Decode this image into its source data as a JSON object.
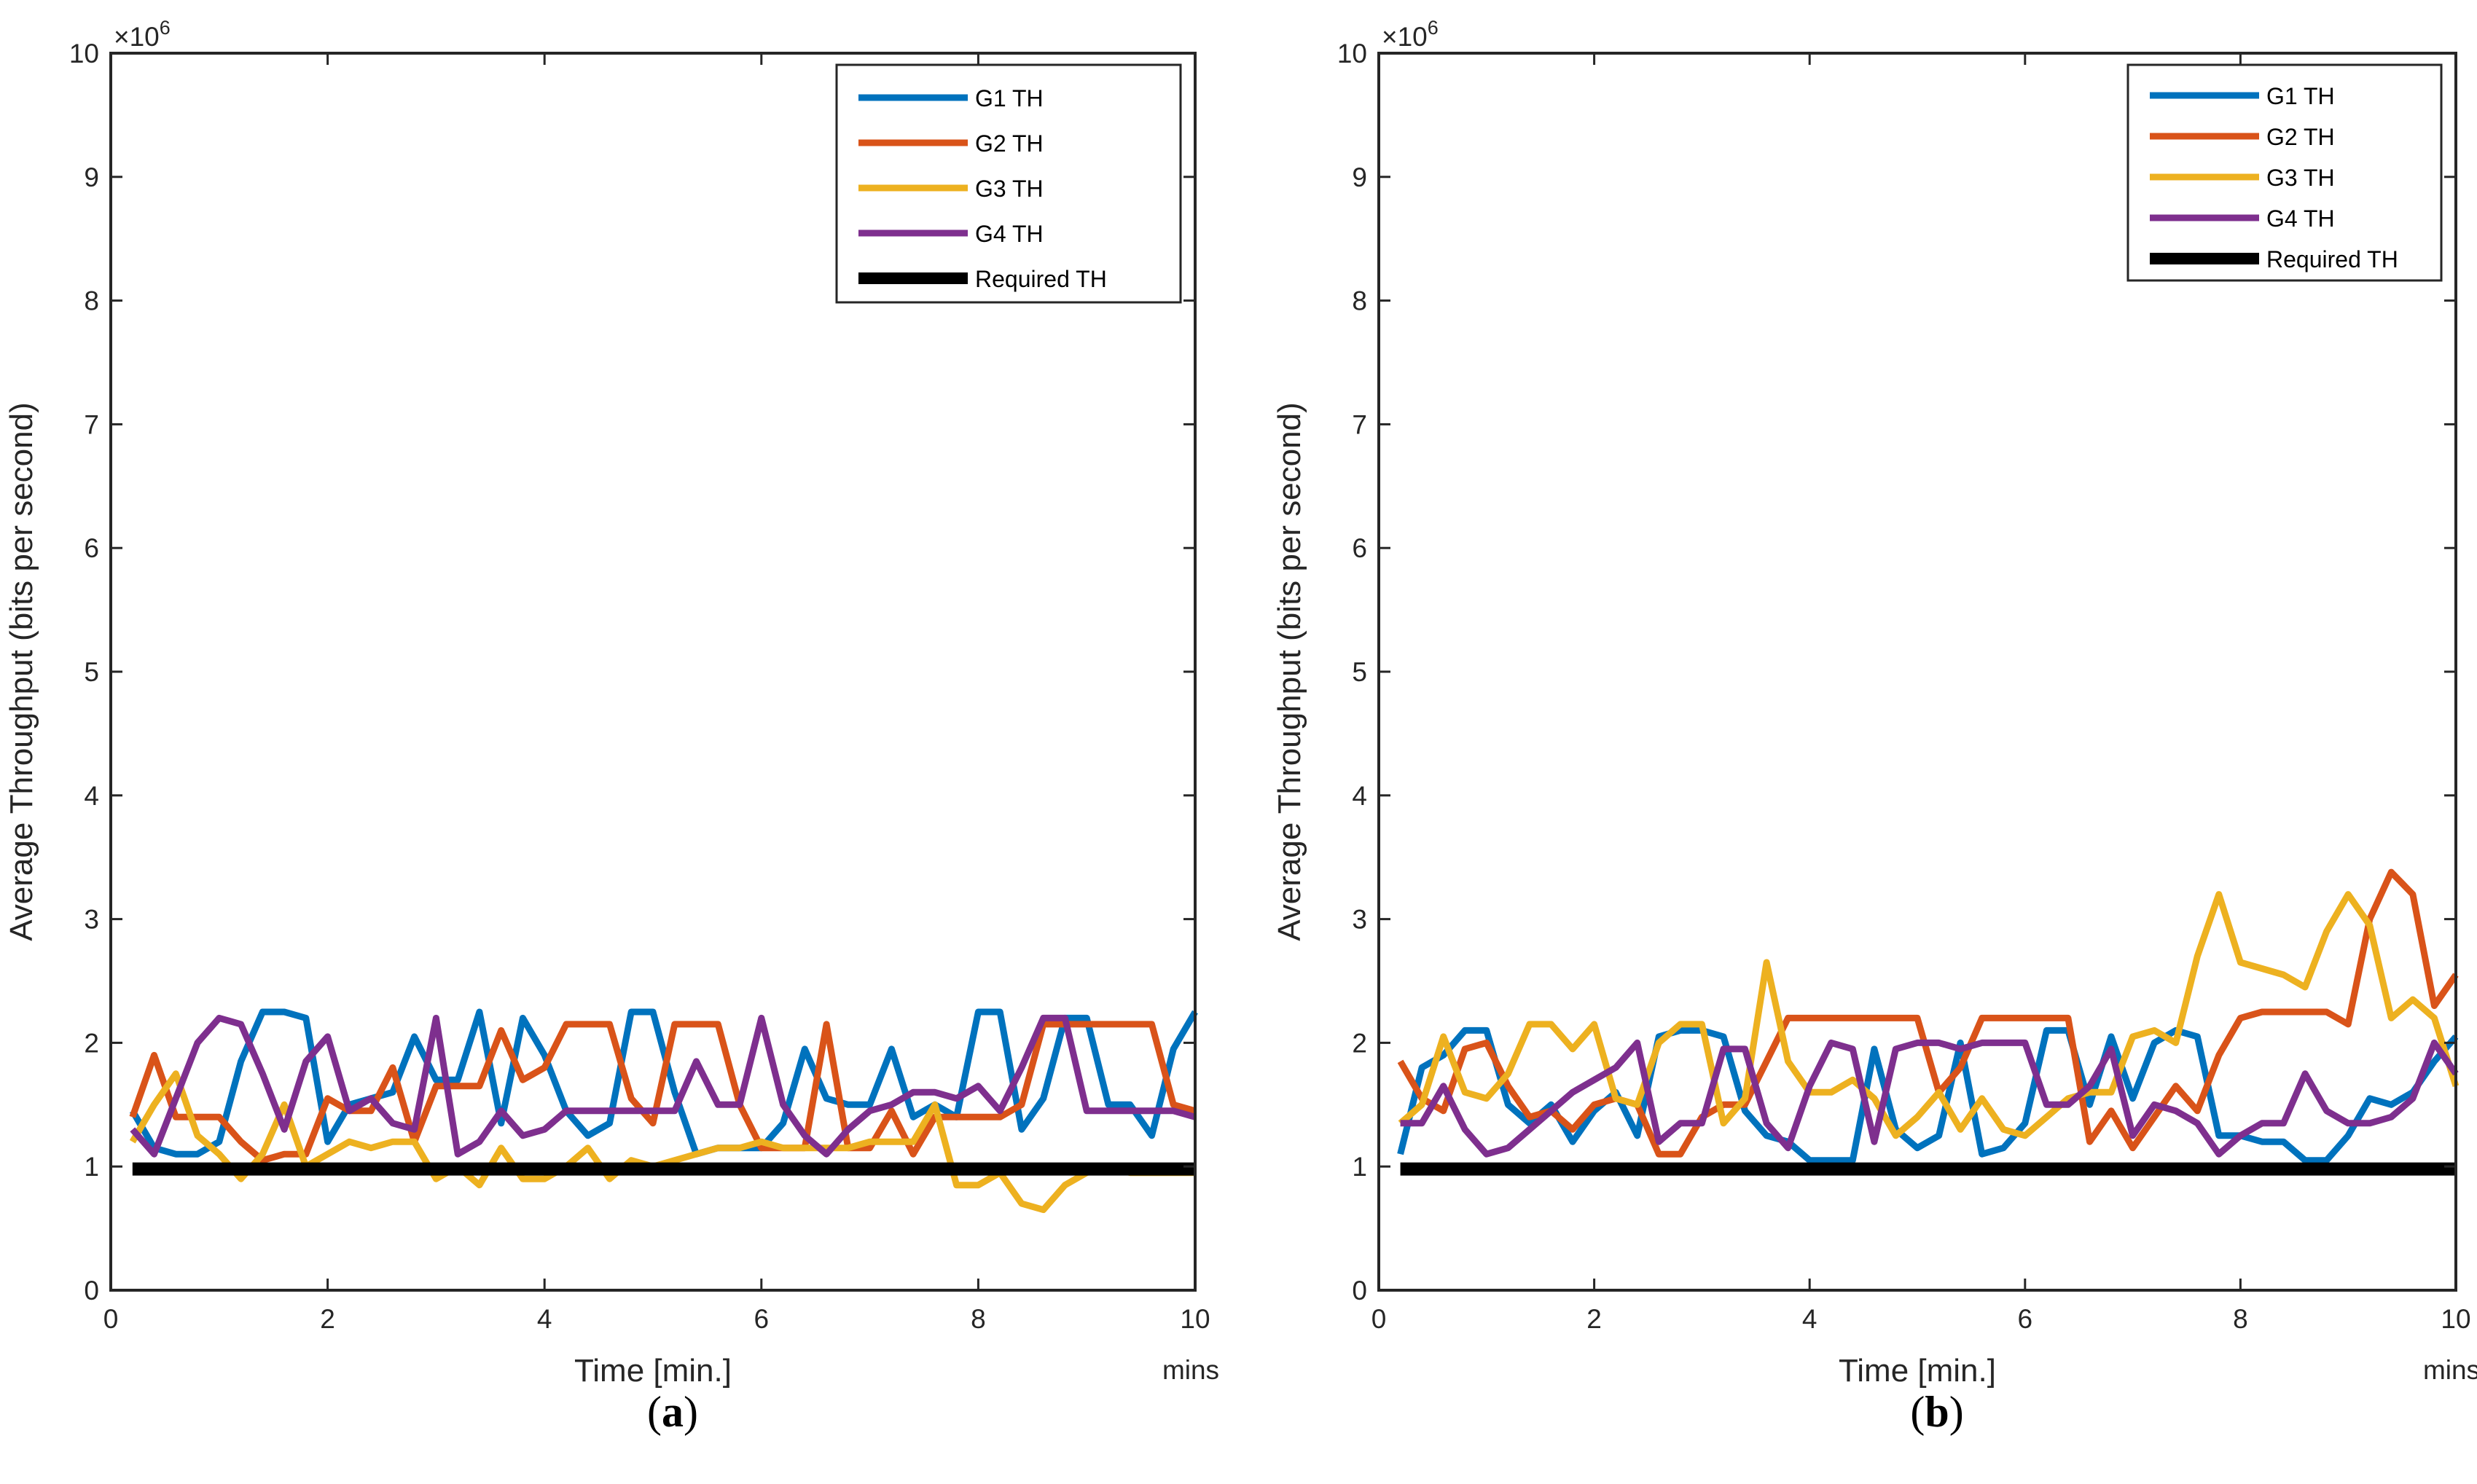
{
  "chart_data": [
    {
      "type": "line",
      "panel_label": "a",
      "xlabel": "Time [min.]",
      "ylabel": "Average Throughput (bits per second)",
      "x_unit_note": "mins",
      "y_multiplier": "×10",
      "y_exponent": "6",
      "xlim": [
        0,
        10
      ],
      "ylim": [
        0,
        10
      ],
      "xticks": [
        "0",
        "2",
        "4",
        "6",
        "8",
        "10"
      ],
      "yticks": [
        "0",
        "1",
        "2",
        "3",
        "4",
        "5",
        "6",
        "7",
        "8",
        "9",
        "10"
      ],
      "legend_position": "top-right",
      "x": [
        0.2,
        0.4,
        0.6,
        0.8,
        1.0,
        1.2,
        1.4,
        1.6,
        1.8,
        2.0,
        2.2,
        2.4,
        2.6,
        2.8,
        3.0,
        3.2,
        3.4,
        3.6,
        3.8,
        4.0,
        4.2,
        4.4,
        4.6,
        4.8,
        5.0,
        5.2,
        5.4,
        5.6,
        5.8,
        6.0,
        6.2,
        6.4,
        6.6,
        6.8,
        7.0,
        7.2,
        7.4,
        7.6,
        7.8,
        8.0,
        8.2,
        8.4,
        8.6,
        8.8,
        9.0,
        9.2,
        9.4,
        9.6,
        9.8,
        10.0
      ],
      "series": [
        {
          "name": "G1 TH",
          "color": "#0072BD",
          "values": [
            1.45,
            1.15,
            1.1,
            1.1,
            1.2,
            1.85,
            2.25,
            2.25,
            2.2,
            1.2,
            1.5,
            1.55,
            1.6,
            2.05,
            1.7,
            1.7,
            2.25,
            1.35,
            2.2,
            1.9,
            1.45,
            1.25,
            1.35,
            2.25,
            2.25,
            1.6,
            1.1,
            1.15,
            1.15,
            1.15,
            1.35,
            1.95,
            1.55,
            1.5,
            1.5,
            1.95,
            1.4,
            1.5,
            1.4,
            2.25,
            2.25,
            1.3,
            1.55,
            2.2,
            2.2,
            1.5,
            1.5,
            1.25,
            1.95,
            2.25
          ]
        },
        {
          "name": "G2 TH",
          "color": "#D95319",
          "values": [
            1.4,
            1.9,
            1.4,
            1.4,
            1.4,
            1.2,
            1.05,
            1.1,
            1.1,
            1.55,
            1.45,
            1.45,
            1.8,
            1.2,
            1.65,
            1.65,
            1.65,
            2.1,
            1.7,
            1.8,
            2.15,
            2.15,
            2.15,
            1.55,
            1.35,
            2.15,
            2.15,
            2.15,
            1.5,
            1.15,
            1.15,
            1.15,
            2.15,
            1.15,
            1.15,
            1.45,
            1.1,
            1.4,
            1.4,
            1.4,
            1.4,
            1.5,
            2.15,
            2.15,
            2.15,
            2.15,
            2.15,
            2.15,
            1.5,
            1.45
          ]
        },
        {
          "name": "G3 TH",
          "color": "#EDB120",
          "values": [
            1.2,
            1.5,
            1.75,
            1.25,
            1.1,
            0.9,
            1.1,
            1.5,
            1.0,
            1.1,
            1.2,
            1.15,
            1.2,
            1.2,
            0.9,
            1.0,
            0.85,
            1.15,
            0.9,
            0.9,
            1.0,
            1.15,
            0.9,
            1.05,
            1.0,
            1.05,
            1.1,
            1.15,
            1.15,
            1.2,
            1.15,
            1.15,
            1.15,
            1.15,
            1.2,
            1.2,
            1.2,
            1.5,
            0.85,
            0.85,
            0.95,
            0.7,
            0.65,
            0.85,
            0.95,
            1.0,
            0.95,
            0.95,
            0.95,
            0.95
          ]
        },
        {
          "name": "G4 TH",
          "color": "#7E2F8E",
          "values": [
            1.3,
            1.1,
            1.55,
            2.0,
            2.2,
            2.15,
            1.75,
            1.3,
            1.85,
            2.05,
            1.45,
            1.55,
            1.35,
            1.3,
            2.2,
            1.1,
            1.2,
            1.45,
            1.25,
            1.3,
            1.45,
            1.45,
            1.45,
            1.45,
            1.45,
            1.45,
            1.85,
            1.5,
            1.5,
            2.2,
            1.5,
            1.25,
            1.1,
            1.3,
            1.45,
            1.5,
            1.6,
            1.6,
            1.55,
            1.65,
            1.45,
            1.8,
            2.2,
            2.2,
            1.45,
            1.45,
            1.45,
            1.45,
            1.45,
            1.4
          ]
        },
        {
          "name": "Required TH",
          "color": "#000000",
          "values": [
            0.98,
            0.98,
            0.98,
            0.98,
            0.98,
            0.98,
            0.98,
            0.98,
            0.98,
            0.98,
            0.98,
            0.98,
            0.98,
            0.98,
            0.98,
            0.98,
            0.98,
            0.98,
            0.98,
            0.98,
            0.98,
            0.98,
            0.98,
            0.98,
            0.98,
            0.98,
            0.98,
            0.98,
            0.98,
            0.98,
            0.98,
            0.98,
            0.98,
            0.98,
            0.98,
            0.98,
            0.98,
            0.98,
            0.98,
            0.98,
            0.98,
            0.98,
            0.98,
            0.98,
            0.98,
            0.98,
            0.98,
            0.98,
            0.98,
            0.98
          ]
        }
      ]
    },
    {
      "type": "line",
      "panel_label": "b",
      "xlabel": "Time [min.]",
      "ylabel": "Average Throughput (bits per second)",
      "x_unit_note": "mins",
      "y_multiplier": "×10",
      "y_exponent": "6",
      "xlim": [
        0,
        10
      ],
      "ylim": [
        0,
        10
      ],
      "xticks": [
        "0",
        "2",
        "4",
        "6",
        "8",
        "10"
      ],
      "yticks": [
        "0",
        "1",
        "2",
        "3",
        "4",
        "5",
        "6",
        "7",
        "8",
        "9",
        "10"
      ],
      "legend_position": "top-right",
      "x": [
        0.2,
        0.4,
        0.6,
        0.8,
        1.0,
        1.2,
        1.4,
        1.6,
        1.8,
        2.0,
        2.2,
        2.4,
        2.6,
        2.8,
        3.0,
        3.2,
        3.4,
        3.6,
        3.8,
        4.0,
        4.2,
        4.4,
        4.6,
        4.8,
        5.0,
        5.2,
        5.4,
        5.6,
        5.8,
        6.0,
        6.2,
        6.4,
        6.6,
        6.8,
        7.0,
        7.2,
        7.4,
        7.6,
        7.8,
        8.0,
        8.2,
        8.4,
        8.6,
        8.8,
        9.0,
        9.2,
        9.4,
        9.6,
        9.8,
        10.0
      ],
      "series": [
        {
          "name": "G1 TH",
          "color": "#0072BD",
          "values": [
            1.1,
            1.8,
            1.9,
            2.1,
            2.1,
            1.5,
            1.35,
            1.5,
            1.2,
            1.45,
            1.6,
            1.25,
            2.05,
            2.1,
            2.1,
            2.05,
            1.45,
            1.25,
            1.2,
            1.05,
            1.05,
            1.05,
            1.95,
            1.3,
            1.15,
            1.25,
            2.0,
            1.1,
            1.15,
            1.35,
            2.1,
            2.1,
            1.5,
            2.05,
            1.55,
            2.0,
            2.1,
            2.05,
            1.25,
            1.25,
            1.2,
            1.2,
            1.05,
            1.05,
            1.25,
            1.55,
            1.5,
            1.6,
            1.85,
            2.05
          ]
        },
        {
          "name": "G2 TH",
          "color": "#D95319",
          "values": [
            1.85,
            1.55,
            1.45,
            1.95,
            2.0,
            1.65,
            1.4,
            1.45,
            1.3,
            1.5,
            1.55,
            1.5,
            1.1,
            1.1,
            1.4,
            1.5,
            1.5,
            1.85,
            2.2,
            2.2,
            2.2,
            2.2,
            2.2,
            2.2,
            2.2,
            1.6,
            1.8,
            2.2,
            2.2,
            2.2,
            2.2,
            2.2,
            1.2,
            1.45,
            1.15,
            1.4,
            1.65,
            1.45,
            1.9,
            2.2,
            2.25,
            2.25,
            2.25,
            2.25,
            2.15,
            3.0,
            3.38,
            3.2,
            2.3,
            2.55
          ]
        },
        {
          "name": "G3 TH",
          "color": "#EDB120",
          "values": [
            1.35,
            1.5,
            2.05,
            1.6,
            1.55,
            1.75,
            2.15,
            2.15,
            1.95,
            2.15,
            1.55,
            1.5,
            2.0,
            2.15,
            2.15,
            1.35,
            1.55,
            2.65,
            1.85,
            1.6,
            1.6,
            1.7,
            1.55,
            1.25,
            1.4,
            1.6,
            1.3,
            1.55,
            1.3,
            1.25,
            1.4,
            1.55,
            1.6,
            1.6,
            2.05,
            2.1,
            2.0,
            2.7,
            3.2,
            2.65,
            2.6,
            2.55,
            2.45,
            2.9,
            3.2,
            2.95,
            2.2,
            2.35,
            2.2,
            1.65
          ]
        },
        {
          "name": "G4 TH",
          "color": "#7E2F8E",
          "values": [
            1.35,
            1.35,
            1.65,
            1.3,
            1.1,
            1.15,
            1.3,
            1.45,
            1.6,
            1.7,
            1.8,
            2.0,
            1.2,
            1.35,
            1.35,
            1.95,
            1.95,
            1.35,
            1.15,
            1.65,
            2.0,
            1.95,
            1.2,
            1.95,
            2.0,
            2.0,
            1.95,
            2.0,
            2.0,
            2.0,
            1.5,
            1.5,
            1.65,
            1.95,
            1.25,
            1.5,
            1.45,
            1.35,
            1.1,
            1.25,
            1.35,
            1.35,
            1.75,
            1.45,
            1.35,
            1.35,
            1.4,
            1.55,
            2.0,
            1.75
          ]
        },
        {
          "name": "Required TH",
          "color": "#000000",
          "values": [
            0.98,
            0.98,
            0.98,
            0.98,
            0.98,
            0.98,
            0.98,
            0.98,
            0.98,
            0.98,
            0.98,
            0.98,
            0.98,
            0.98,
            0.98,
            0.98,
            0.98,
            0.98,
            0.98,
            0.98,
            0.98,
            0.98,
            0.98,
            0.98,
            0.98,
            0.98,
            0.98,
            0.98,
            0.98,
            0.98,
            0.98,
            0.98,
            0.98,
            0.98,
            0.98,
            0.98,
            0.98,
            0.98,
            0.98,
            0.98,
            0.98,
            0.98,
            0.98,
            0.98,
            0.98,
            0.98,
            0.98,
            0.98,
            0.98,
            0.98
          ]
        }
      ]
    }
  ]
}
